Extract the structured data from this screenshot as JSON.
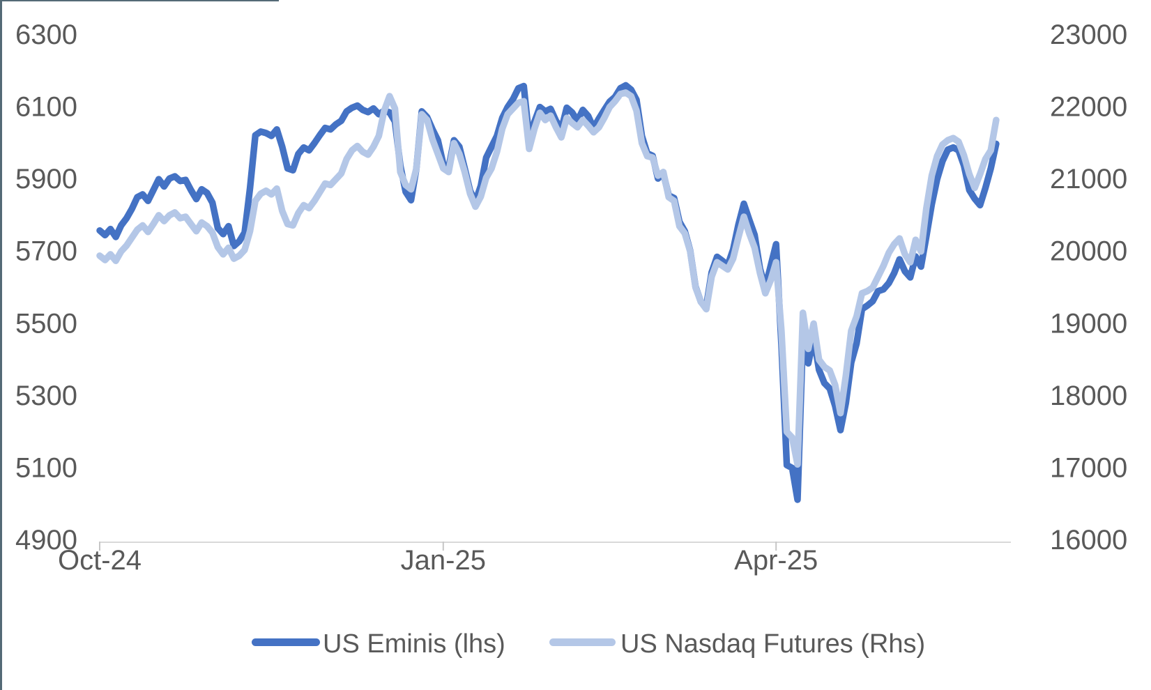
{
  "chart_data": {
    "type": "line",
    "title": "",
    "grid": false,
    "legend_position": "bottom",
    "x_axis": {
      "ticks": [
        {
          "label": "Oct-24",
          "day": 0
        },
        {
          "label": "Jan-25",
          "day": 64
        },
        {
          "label": "Apr-25",
          "day": 126
        }
      ]
    },
    "left_axis": {
      "min": 4900,
      "max": 6300,
      "tick_step": 200,
      "ticks": [
        6300,
        6100,
        5900,
        5700,
        5500,
        5300,
        5100,
        4900
      ]
    },
    "right_axis": {
      "min": 16000,
      "max": 23000,
      "tick_step": 1000,
      "ticks": [
        23000,
        22000,
        21000,
        20000,
        19000,
        18000,
        17000,
        16000
      ]
    },
    "series": [
      {
        "name": "US Eminis (lhs)",
        "axis": "left",
        "color": "#4472C4",
        "values": [
          5758,
          5745,
          5762,
          5740,
          5772,
          5792,
          5818,
          5850,
          5858,
          5840,
          5870,
          5900,
          5880,
          5902,
          5908,
          5895,
          5898,
          5870,
          5845,
          5872,
          5862,
          5835,
          5765,
          5748,
          5770,
          5715,
          5728,
          5752,
          5875,
          6022,
          6032,
          6028,
          6020,
          6038,
          5990,
          5930,
          5925,
          5970,
          5988,
          5980,
          6000,
          6022,
          6042,
          6038,
          6052,
          6062,
          6088,
          6098,
          6104,
          6092,
          6086,
          6096,
          6080,
          6090,
          6085,
          6060,
          5938,
          5865,
          5842,
          5930,
          6088,
          6072,
          6038,
          6008,
          5942,
          5932,
          6008,
          5990,
          5930,
          5868,
          5838,
          5882,
          5960,
          5990,
          6020,
          6070,
          6100,
          6122,
          6152,
          6158,
          6015,
          6060,
          6100,
          6088,
          6095,
          6062,
          6038,
          6098,
          6085,
          6062,
          6092,
          6075,
          6042,
          6068,
          6092,
          6115,
          6128,
          6152,
          6160,
          6148,
          6120,
          6020,
          5972,
          5965,
          5902,
          5916,
          5855,
          5848,
          5782,
          5756,
          5702,
          5602,
          5560,
          5548,
          5642,
          5685,
          5674,
          5662,
          5705,
          5775,
          5832,
          5788,
          5746,
          5652,
          5600,
          5660,
          5720,
          5442,
          5108,
          5100,
          5012,
          5462,
          5390,
          5462,
          5372,
          5335,
          5320,
          5272,
          5205,
          5280,
          5392,
          5445,
          5540,
          5550,
          5562,
          5590,
          5595,
          5612,
          5640,
          5678,
          5645,
          5628,
          5686,
          5658,
          5742,
          5830,
          5900,
          5950,
          5982,
          5988,
          5980,
          5938,
          5870,
          5846,
          5828,
          5876,
          5930,
          5998
        ]
      },
      {
        "name": "US Nasdaq Futures (Rhs)",
        "axis": "right",
        "color": "#B4C7E7",
        "values": [
          19940,
          19880,
          19960,
          19870,
          20000,
          20080,
          20190,
          20300,
          20360,
          20270,
          20380,
          20500,
          20420,
          20500,
          20540,
          20460,
          20480,
          20380,
          20280,
          20400,
          20350,
          20260,
          20060,
          19960,
          20050,
          19900,
          19940,
          20020,
          20280,
          20700,
          20800,
          20840,
          20790,
          20870,
          20560,
          20380,
          20360,
          20530,
          20640,
          20600,
          20700,
          20820,
          20940,
          20920,
          21000,
          21080,
          21280,
          21400,
          21460,
          21380,
          21340,
          21450,
          21600,
          21950,
          22150,
          21980,
          21100,
          20920,
          20860,
          21150,
          21900,
          21820,
          21550,
          21350,
          21150,
          21100,
          21500,
          21350,
          21100,
          20800,
          20620,
          20760,
          21020,
          21150,
          21380,
          21700,
          21900,
          21980,
          22060,
          22080,
          21420,
          21700,
          21920,
          21820,
          21880,
          21720,
          21580,
          21850,
          21780,
          21720,
          21820,
          21740,
          21650,
          21720,
          21850,
          22000,
          22080,
          22180,
          22200,
          22150,
          21950,
          21500,
          21320,
          21300,
          21050,
          21100,
          20750,
          20700,
          20350,
          20250,
          20000,
          19500,
          19300,
          19200,
          19650,
          19850,
          19800,
          19750,
          19900,
          20200,
          20480,
          20250,
          20050,
          19700,
          19420,
          19600,
          19850,
          18900,
          17500,
          17420,
          17050,
          19150,
          18650,
          19000,
          18500,
          18400,
          18350,
          18150,
          17760,
          18280,
          18900,
          19100,
          19420,
          19450,
          19500,
          19650,
          19800,
          19980,
          20100,
          20180,
          19960,
          19850,
          20160,
          20000,
          20600,
          21050,
          21320,
          21480,
          21540,
          21570,
          21520,
          21330,
          21070,
          20880,
          21070,
          21280,
          21400,
          21820
        ]
      }
    ]
  },
  "colors": {
    "axis_text": "#595959",
    "axis_line": "#D9D9D9",
    "tick_mark": "#C6C6C6",
    "page_border": "#546A76",
    "background": "#FFFFFF"
  }
}
